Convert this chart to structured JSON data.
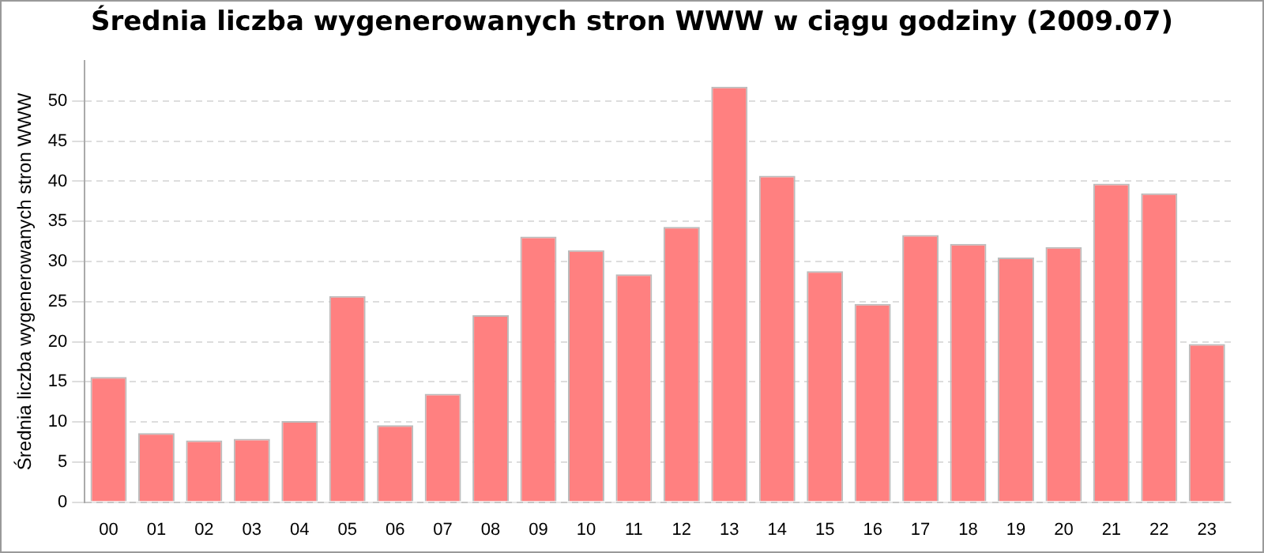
{
  "chart_data": {
    "type": "bar",
    "title": "Średnia liczba wygenerowanych stron WWW w ciągu godziny (2009.07)",
    "ylabel": "Średnia liczba wygenerowanych stron WWW",
    "categories": [
      "00",
      "01",
      "02",
      "03",
      "04",
      "05",
      "06",
      "07",
      "08",
      "09",
      "10",
      "11",
      "12",
      "13",
      "14",
      "15",
      "16",
      "17",
      "18",
      "19",
      "20",
      "21",
      "22",
      "23"
    ],
    "values": [
      15.6,
      8.6,
      7.7,
      7.9,
      10.1,
      25.7,
      9.6,
      13.5,
      23.3,
      33.1,
      31.4,
      28.4,
      34.3,
      51.8,
      40.7,
      28.8,
      24.7,
      33.3,
      32.2,
      30.5,
      31.8,
      39.7,
      38.5,
      19.7
    ],
    "color": "#ff8080",
    "ylim": [
      0,
      55
    ],
    "yticks": [
      0,
      5,
      10,
      15,
      20,
      25,
      30,
      35,
      40,
      45,
      50
    ],
    "grid": "y",
    "legend": false
  }
}
